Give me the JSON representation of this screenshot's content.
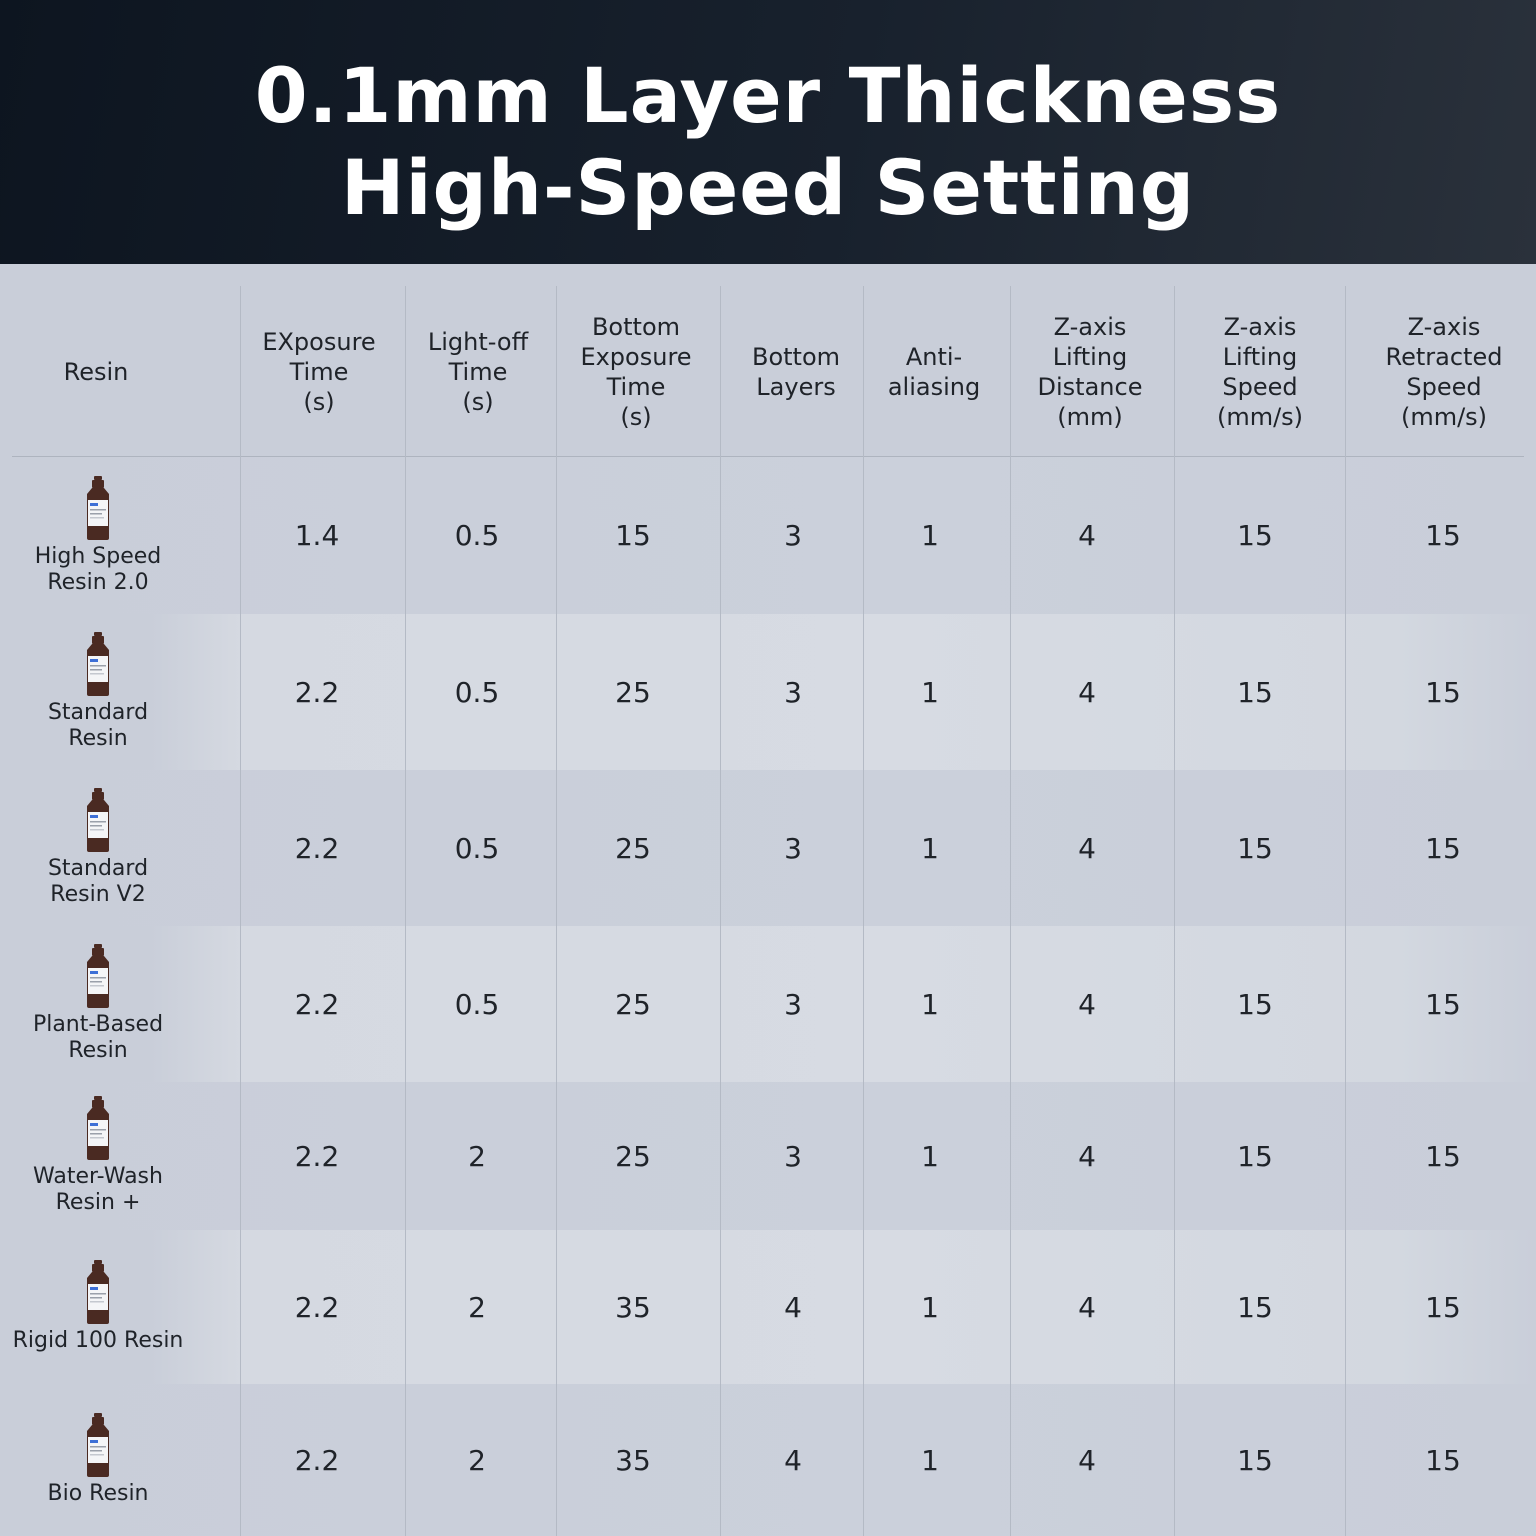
{
  "title": {
    "line1": "0.1mm Layer Thickness",
    "line2": "High-Speed Setting"
  },
  "table": {
    "headers": [
      "Resin",
      "EXposure\nTime\n(s)",
      "Light-off\nTime\n(s)",
      "Bottom\nExposure\nTime\n(s)",
      "Bottom\nLayers",
      "Anti-\naliasing",
      "Z-axis\nLifting\nDistance\n(mm)",
      "Z-axis\nLifting\nSpeed\n(mm/s)",
      "Z-axis\nRetracted\nSpeed\n(mm/s)"
    ],
    "rows": [
      {
        "resin": "High Speed\nResin 2.0",
        "icon": "resin-bottle-icon",
        "values": [
          "1.4",
          "0.5",
          "15",
          "3",
          "1",
          "4",
          "15",
          "15"
        ]
      },
      {
        "resin": "Standard\nResin",
        "icon": "resin-bottle-icon",
        "values": [
          "2.2",
          "0.5",
          "25",
          "3",
          "1",
          "4",
          "15",
          "15"
        ]
      },
      {
        "resin": "Standard\nResin V2",
        "icon": "resin-bottle-icon",
        "values": [
          "2.2",
          "0.5",
          "25",
          "3",
          "1",
          "4",
          "15",
          "15"
        ]
      },
      {
        "resin": "Plant-Based\nResin",
        "icon": "resin-bottle-icon",
        "values": [
          "2.2",
          "0.5",
          "25",
          "3",
          "1",
          "4",
          "15",
          "15"
        ]
      },
      {
        "resin": "Water-Wash\nResin +",
        "icon": "resin-bottle-icon",
        "values": [
          "2.2",
          "2",
          "25",
          "3",
          "1",
          "4",
          "15",
          "15"
        ]
      },
      {
        "resin": "Rigid 100 Resin",
        "icon": "resin-bottle-icon",
        "values": [
          "2.2",
          "2",
          "35",
          "4",
          "1",
          "4",
          "15",
          "15"
        ]
      },
      {
        "resin": "Bio Resin",
        "icon": "resin-bottle-icon",
        "values": [
          "2.2",
          "2",
          "35",
          "4",
          "1",
          "4",
          "15",
          "15"
        ]
      }
    ]
  },
  "colors": {
    "header_bg": "#111a25",
    "table_bg": "#c9ced9",
    "bottle": "#4a2a22"
  }
}
